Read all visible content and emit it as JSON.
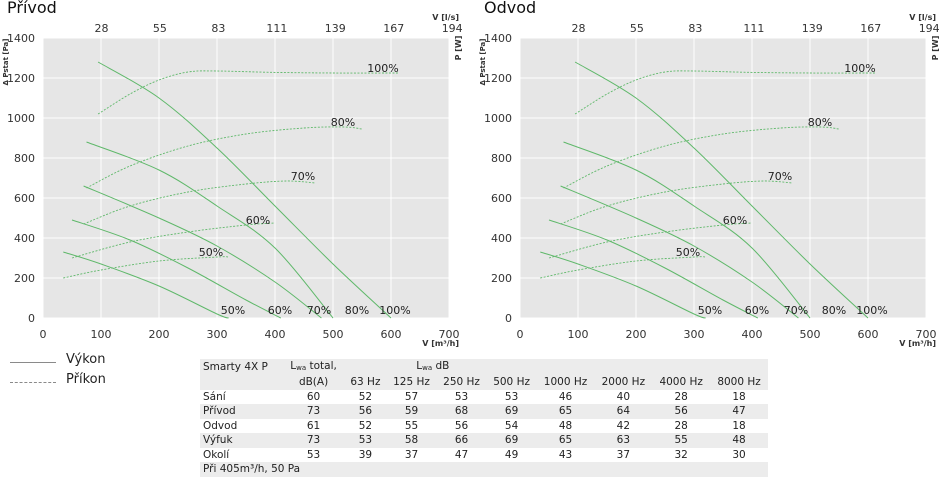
{
  "chart_data": [
    {
      "type": "line",
      "title": "Přívod",
      "xlabel": "V [m³/h]",
      "ylabel": "Δ Pstat [Pa]",
      "ylabel_right": "P [W]",
      "x2label": "V [l/s]",
      "xlim": [
        0,
        700
      ],
      "ylim": [
        0,
        1400
      ],
      "xticks": [
        0,
        100,
        200,
        300,
        400,
        500,
        600,
        700
      ],
      "yticks": [
        0,
        200,
        400,
        600,
        800,
        1000,
        1200,
        1400
      ],
      "x2ticks": [
        "28",
        "55",
        "83",
        "111",
        "139",
        "167",
        "194"
      ],
      "grid": true,
      "pressure_series": [
        {
          "label": "100%",
          "x": [
            95,
            200,
            300,
            400,
            500,
            600
          ],
          "y": [
            1280,
            1100,
            850,
            560,
            270,
            0
          ]
        },
        {
          "label": "80%",
          "x": [
            75,
            200,
            300,
            400,
            500
          ],
          "y": [
            880,
            740,
            560,
            350,
            0
          ]
        },
        {
          "label": "70%",
          "x": [
            70,
            200,
            300,
            400,
            480
          ],
          "y": [
            660,
            500,
            360,
            180,
            0
          ]
        },
        {
          "label": "60%",
          "x": [
            50,
            150,
            250,
            350,
            410
          ],
          "y": [
            490,
            390,
            250,
            90,
            0
          ]
        },
        {
          "label": "50%",
          "x": [
            35,
            100,
            200,
            300,
            320
          ],
          "y": [
            330,
            270,
            160,
            20,
            0
          ]
        }
      ],
      "power_series": [
        {
          "label": "100%",
          "x": [
            95,
            150,
            200,
            250,
            300,
            400,
            500,
            600,
            610
          ],
          "y": [
            1020,
            1120,
            1190,
            1230,
            1235,
            1228,
            1225,
            1225,
            1225
          ]
        },
        {
          "label": "80%",
          "x": [
            75,
            150,
            250,
            350,
            450,
            520,
            550
          ],
          "y": [
            650,
            760,
            860,
            920,
            950,
            955,
            945
          ]
        },
        {
          "label": "70%",
          "x": [
            70,
            150,
            250,
            350,
            420,
            470
          ],
          "y": [
            470,
            560,
            630,
            670,
            685,
            675
          ]
        },
        {
          "label": "60%",
          "x": [
            50,
            150,
            250,
            350,
            400
          ],
          "y": [
            300,
            380,
            430,
            465,
            475
          ]
        },
        {
          "label": "50%",
          "x": [
            35,
            100,
            200,
            300,
            320
          ],
          "y": [
            200,
            240,
            285,
            305,
            305
          ]
        }
      ],
      "curve_labels": [
        {
          "text": "100%",
          "x": 340,
          "y": 1250
        },
        {
          "text": "80%",
          "x": 300,
          "y": 980
        },
        {
          "text": "70%",
          "x": 260,
          "y": 710
        },
        {
          "text": "60%",
          "x": 215,
          "y": 490
        },
        {
          "text": "50%",
          "x": 168,
          "y": 330
        },
        {
          "text": "50%",
          "x": 190,
          "y": 40
        },
        {
          "text": "60%",
          "x": 237,
          "y": 40
        },
        {
          "text": "70%",
          "x": 276,
          "y": 40
        },
        {
          "text": "80%",
          "x": 314,
          "y": 40
        },
        {
          "text": "100%",
          "x": 352,
          "y": 40
        }
      ]
    },
    {
      "type": "line",
      "title": "Odvod",
      "xlabel": "V [m³/h]",
      "ylabel": "Δ Pstat [Pa]",
      "ylabel_right": "P [W]",
      "x2label": "V [l/s]",
      "xlim": [
        0,
        700
      ],
      "ylim": [
        0,
        1400
      ],
      "xticks": [
        0,
        100,
        200,
        300,
        400,
        500,
        600,
        700
      ],
      "yticks": [
        0,
        200,
        400,
        600,
        800,
        1000,
        1200,
        1400
      ],
      "x2ticks": [
        "28",
        "55",
        "83",
        "111",
        "139",
        "167",
        "194"
      ],
      "grid": true,
      "pressure_series": [
        {
          "label": "100%",
          "x": [
            95,
            200,
            300,
            400,
            500,
            600
          ],
          "y": [
            1280,
            1100,
            850,
            560,
            270,
            0
          ]
        },
        {
          "label": "80%",
          "x": [
            75,
            200,
            300,
            400,
            500
          ],
          "y": [
            880,
            740,
            560,
            350,
            0
          ]
        },
        {
          "label": "70%",
          "x": [
            70,
            200,
            300,
            400,
            480
          ],
          "y": [
            660,
            500,
            360,
            180,
            0
          ]
        },
        {
          "label": "60%",
          "x": [
            50,
            150,
            250,
            350,
            410
          ],
          "y": [
            490,
            390,
            250,
            90,
            0
          ]
        },
        {
          "label": "50%",
          "x": [
            35,
            100,
            200,
            300,
            320
          ],
          "y": [
            330,
            270,
            160,
            20,
            0
          ]
        }
      ],
      "power_series": [
        {
          "label": "100%",
          "x": [
            95,
            150,
            200,
            250,
            300,
            400,
            500,
            600,
            610
          ],
          "y": [
            1020,
            1120,
            1190,
            1230,
            1235,
            1228,
            1225,
            1225,
            1225
          ]
        },
        {
          "label": "80%",
          "x": [
            75,
            150,
            250,
            350,
            450,
            520,
            550
          ],
          "y": [
            650,
            760,
            860,
            920,
            950,
            955,
            945
          ]
        },
        {
          "label": "70%",
          "x": [
            70,
            150,
            250,
            350,
            420,
            470
          ],
          "y": [
            470,
            560,
            630,
            670,
            685,
            675
          ]
        },
        {
          "label": "60%",
          "x": [
            50,
            150,
            250,
            350,
            400
          ],
          "y": [
            300,
            380,
            430,
            465,
            475
          ]
        },
        {
          "label": "50%",
          "x": [
            35,
            100,
            200,
            300,
            320
          ],
          "y": [
            200,
            240,
            285,
            305,
            305
          ]
        }
      ],
      "curve_labels": [
        {
          "text": "100%",
          "x": 340,
          "y": 1250
        },
        {
          "text": "80%",
          "x": 300,
          "y": 980
        },
        {
          "text": "70%",
          "x": 260,
          "y": 710
        },
        {
          "text": "60%",
          "x": 215,
          "y": 490
        },
        {
          "text": "50%",
          "x": 168,
          "y": 330
        },
        {
          "text": "50%",
          "x": 190,
          "y": 40
        },
        {
          "text": "60%",
          "x": 237,
          "y": 40
        },
        {
          "text": "70%",
          "x": 276,
          "y": 40
        },
        {
          "text": "80%",
          "x": 314,
          "y": 40
        },
        {
          "text": "100%",
          "x": 352,
          "y": 40
        }
      ]
    }
  ],
  "legend": {
    "items": [
      {
        "label": "Výkon",
        "style": "solid"
      },
      {
        "label": "Příkon",
        "style": "dashed"
      }
    ]
  },
  "colors": {
    "plot_bg": "#e6e6e6",
    "grid": "#ffffff",
    "curve": "#5fb86a",
    "text": "#222222",
    "table_shade": "#ececec"
  },
  "noise_table": {
    "model": "Smarty 4X P",
    "lwa_total_label": "L",
    "lwa_sub": "wa",
    "total_suffix": " total,",
    "total_unit": "dB(A)",
    "db_label": " dB",
    "bands": [
      "63 Hz",
      "125 Hz",
      "250 Hz",
      "500 Hz",
      "1000 Hz",
      "2000 Hz",
      "4000 Hz",
      "8000 Hz"
    ],
    "rows": [
      {
        "name": "Sání",
        "total": "60",
        "values": [
          "52",
          "57",
          "53",
          "53",
          "46",
          "40",
          "28",
          "18"
        ]
      },
      {
        "name": "Přívod",
        "total": "73",
        "values": [
          "56",
          "59",
          "68",
          "69",
          "65",
          "64",
          "56",
          "47"
        ]
      },
      {
        "name": "Odvod",
        "total": "61",
        "values": [
          "52",
          "55",
          "56",
          "54",
          "48",
          "42",
          "28",
          "18"
        ]
      },
      {
        "name": "Výfuk",
        "total": "73",
        "values": [
          "53",
          "58",
          "66",
          "69",
          "65",
          "63",
          "55",
          "48"
        ]
      },
      {
        "name": "Okolí",
        "total": "53",
        "values": [
          "39",
          "37",
          "47",
          "49",
          "43",
          "37",
          "32",
          "30"
        ]
      }
    ],
    "footnote": "Při 405m³/h, 50 Pa"
  }
}
